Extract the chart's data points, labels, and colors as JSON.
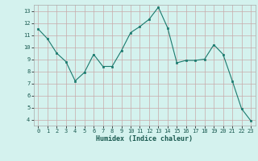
{
  "x": [
    0,
    1,
    2,
    3,
    4,
    5,
    6,
    7,
    8,
    9,
    10,
    11,
    12,
    13,
    14,
    15,
    16,
    17,
    18,
    19,
    20,
    21,
    22,
    23
  ],
  "y": [
    11.5,
    10.7,
    9.5,
    8.8,
    7.2,
    7.9,
    9.4,
    8.4,
    8.4,
    9.7,
    11.2,
    11.7,
    12.3,
    13.3,
    11.6,
    8.7,
    8.9,
    8.9,
    9.0,
    10.2,
    9.4,
    7.2,
    4.9,
    3.9
  ],
  "line_color": "#1a7a6e",
  "marker_color": "#1a7a6e",
  "bg_color": "#d4f2ee",
  "grid_color": "#c8aaaa",
  "xlabel": "Humidex (Indice chaleur)",
  "xlim": [
    -0.5,
    23.5
  ],
  "ylim": [
    3.5,
    13.5
  ],
  "yticks": [
    4,
    5,
    6,
    7,
    8,
    9,
    10,
    11,
    12,
    13
  ],
  "xticks": [
    0,
    1,
    2,
    3,
    4,
    5,
    6,
    7,
    8,
    9,
    10,
    11,
    12,
    13,
    14,
    15,
    16,
    17,
    18,
    19,
    20,
    21,
    22,
    23
  ]
}
